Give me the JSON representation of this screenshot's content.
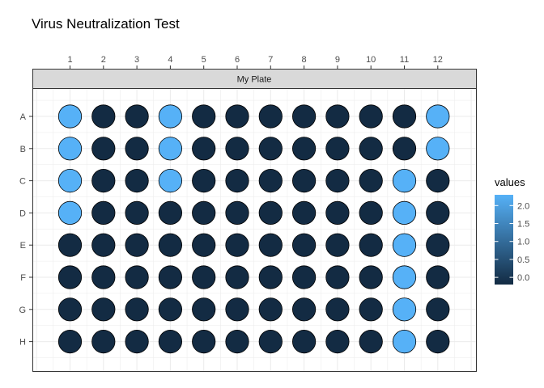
{
  "chart_data": {
    "type": "heatmap",
    "title": "Virus Neutralization Test",
    "strip_label": "My Plate",
    "columns": [
      "1",
      "2",
      "3",
      "4",
      "5",
      "6",
      "7",
      "8",
      "9",
      "10",
      "11",
      "12"
    ],
    "rows": [
      "A",
      "B",
      "C",
      "D",
      "E",
      "F",
      "G",
      "H"
    ],
    "values": [
      [
        2.3,
        -0.2,
        -0.2,
        2.3,
        -0.2,
        -0.2,
        -0.2,
        -0.2,
        -0.2,
        -0.2,
        -0.2,
        2.3
      ],
      [
        2.3,
        -0.2,
        -0.2,
        2.3,
        -0.2,
        -0.2,
        -0.2,
        -0.2,
        -0.2,
        -0.2,
        -0.2,
        2.3
      ],
      [
        2.3,
        -0.2,
        -0.2,
        2.3,
        -0.2,
        -0.2,
        -0.2,
        -0.2,
        -0.2,
        -0.2,
        2.3,
        -0.2
      ],
      [
        2.3,
        -0.2,
        -0.2,
        -0.2,
        -0.2,
        -0.2,
        -0.2,
        -0.2,
        -0.2,
        -0.2,
        2.3,
        -0.2
      ],
      [
        -0.2,
        -0.2,
        -0.2,
        -0.2,
        -0.2,
        -0.2,
        -0.2,
        -0.2,
        -0.2,
        -0.2,
        2.3,
        -0.2
      ],
      [
        -0.2,
        -0.2,
        -0.2,
        -0.2,
        -0.2,
        -0.2,
        -0.2,
        -0.2,
        -0.2,
        -0.2,
        2.3,
        -0.2
      ],
      [
        -0.2,
        -0.2,
        -0.2,
        -0.2,
        -0.2,
        -0.2,
        -0.2,
        -0.2,
        -0.2,
        -0.2,
        2.3,
        -0.2
      ],
      [
        -0.2,
        -0.2,
        -0.2,
        -0.2,
        -0.2,
        -0.2,
        -0.2,
        -0.2,
        -0.2,
        -0.2,
        2.3,
        -0.2
      ]
    ],
    "legend": {
      "title": "values",
      "breaks": [
        "2.0",
        "1.5",
        "1.0",
        "0.5",
        "0.0"
      ],
      "break_values": [
        2.0,
        1.5,
        1.0,
        0.5,
        0.0
      ],
      "range": [
        -0.2,
        2.3
      ],
      "placement": "right"
    },
    "colors": {
      "low": "#132b43",
      "high": "#56b1f7",
      "grid": "#ebebeb",
      "strip_fill": "#d9d9d9",
      "panel_border": "#333333"
    },
    "grid": true
  }
}
